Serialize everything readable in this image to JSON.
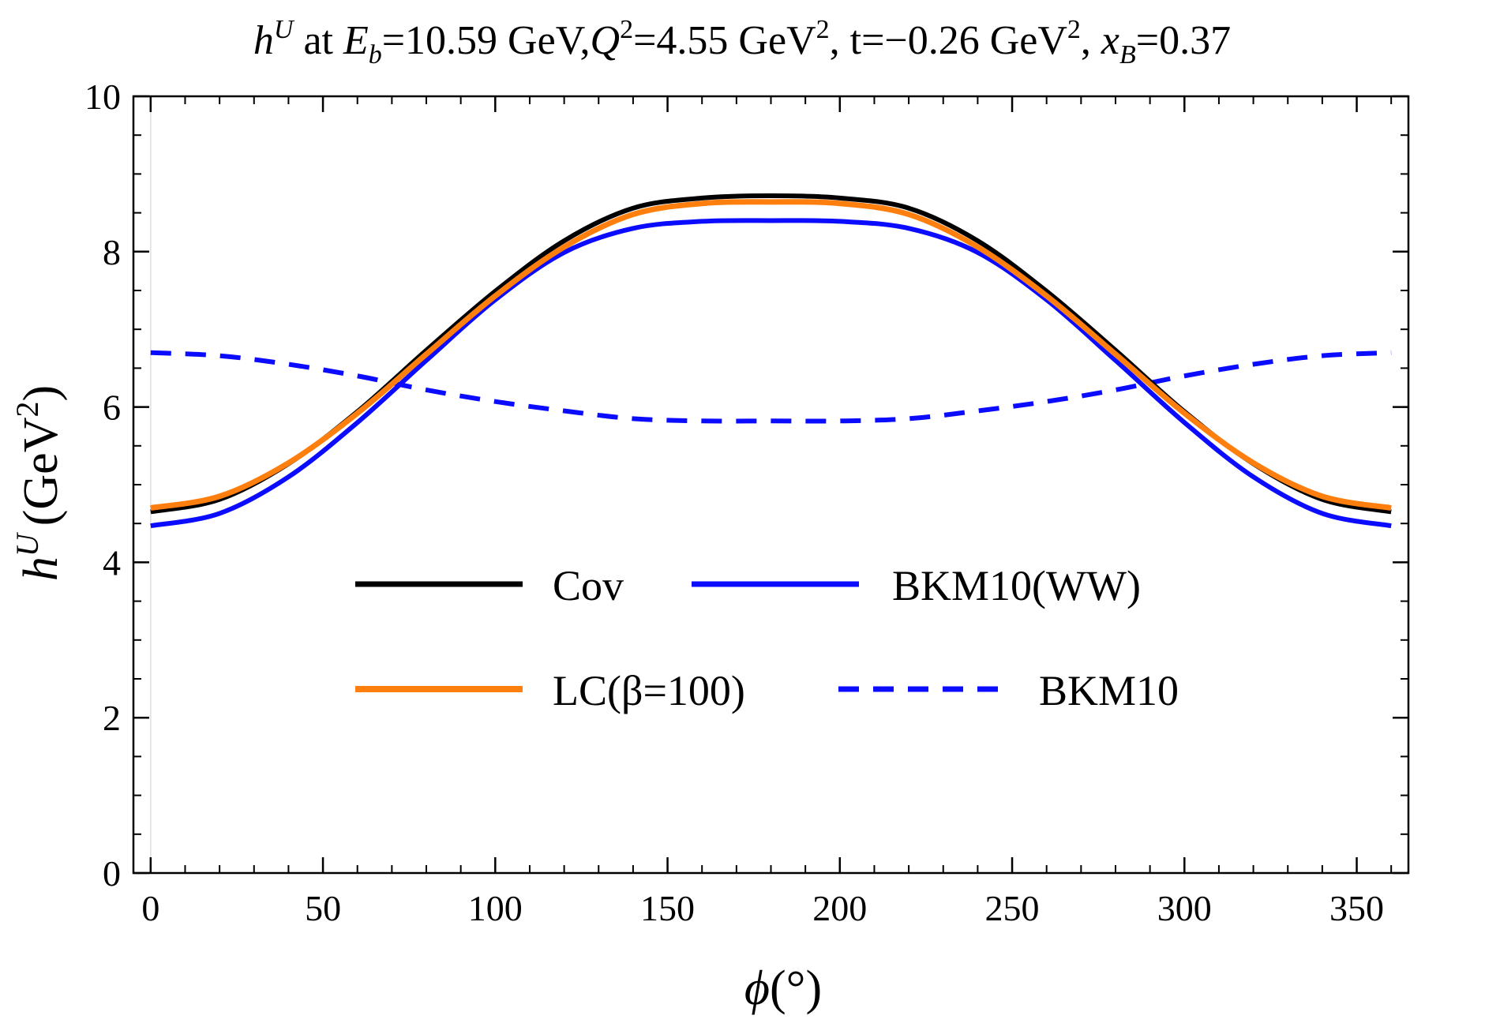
{
  "chart_data": {
    "type": "line",
    "title": {
      "prefix": "h",
      "prefix_sup": "U",
      "at": " at ",
      "eb_symbol": "E",
      "eb_sub": "b",
      "eb_value": "=10.59 GeV,",
      "q_symbol": "Q",
      "q_sup": "2",
      "q_value": "=4.55 GeV",
      "q_unit_sup": "2",
      "t_value": ", t=−0.26 GeV",
      "t_unit_sup": "2",
      "comma": ",",
      "x_symbol": "x",
      "x_sub": "B",
      "x_value": "=0.37"
    },
    "xlabel": {
      "symbol": "ϕ",
      "unit": "(°)"
    },
    "ylabel": {
      "symbol": "h",
      "sup": "U",
      "unit": "(GeV",
      "unit_sup": "2",
      "close": ")"
    },
    "xlim": [
      -5,
      365
    ],
    "ylim": [
      0,
      10
    ],
    "xticks": [
      0,
      50,
      100,
      150,
      200,
      250,
      300,
      350
    ],
    "yticks": [
      0,
      2,
      4,
      6,
      8,
      10
    ],
    "xminor_step": 10,
    "yminor_step": 0.5,
    "x": [
      0,
      20,
      40,
      60,
      80,
      100,
      120,
      140,
      160,
      180,
      200,
      220,
      240,
      260,
      280,
      300,
      320,
      340,
      360
    ],
    "series": [
      {
        "name": "Cov",
        "color": "#000000",
        "style": "solid",
        "values": [
          4.65,
          4.81,
          5.27,
          5.94,
          6.73,
          7.49,
          8.14,
          8.56,
          8.69,
          8.72,
          8.69,
          8.56,
          8.14,
          7.49,
          6.73,
          5.94,
          5.27,
          4.81,
          4.65
        ]
      },
      {
        "name": "LC(β=100)",
        "color": "#ff7f0e",
        "style": "solid",
        "values": [
          4.7,
          4.85,
          5.28,
          5.92,
          6.68,
          7.43,
          8.06,
          8.48,
          8.62,
          8.64,
          8.62,
          8.48,
          8.06,
          7.43,
          6.68,
          5.92,
          5.28,
          4.85,
          4.7
        ]
      },
      {
        "name": "BKM10(WW)",
        "color": "#0b0bff",
        "style": "solid",
        "values": [
          4.47,
          4.63,
          5.1,
          5.8,
          6.6,
          7.38,
          7.99,
          8.3,
          8.39,
          8.4,
          8.39,
          8.3,
          7.99,
          7.38,
          6.6,
          5.8,
          5.1,
          4.63,
          4.47
        ]
      },
      {
        "name": "BKM10",
        "color": "#0b0bff",
        "style": "dashed",
        "values": [
          6.7,
          6.66,
          6.55,
          6.4,
          6.22,
          6.07,
          5.95,
          5.85,
          5.82,
          5.82,
          5.82,
          5.85,
          5.95,
          6.07,
          6.22,
          6.4,
          6.55,
          6.66,
          6.7
        ]
      }
    ],
    "legend": {
      "placement": "center-bottom",
      "entries": [
        "Cov",
        "BKM10(WW)",
        "LC(β=100)",
        "BKM10"
      ]
    }
  }
}
